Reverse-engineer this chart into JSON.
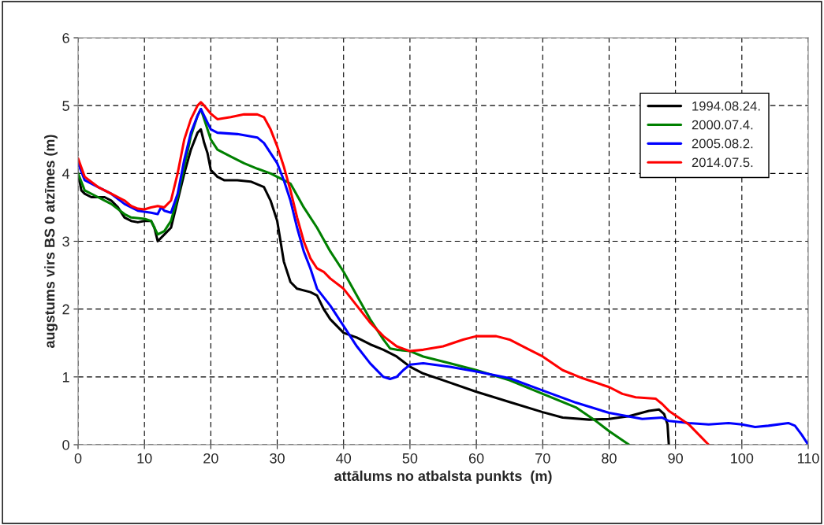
{
  "chart_data": {
    "type": "line",
    "xlabel": "attālums no atbalsta punkts  (m)",
    "ylabel": "augstums virs BS 0 atzīmes (m)",
    "xlim": [
      0,
      110
    ],
    "xticks": [
      0,
      10,
      20,
      30,
      40,
      50,
      60,
      70,
      80,
      90,
      100,
      110
    ],
    "ylim": [
      0,
      6
    ],
    "yticks": [
      0,
      1,
      2,
      3,
      4,
      5,
      6
    ],
    "grid": true,
    "legend": "top right",
    "marker": "none",
    "line_style": "solid",
    "series": [
      {
        "name": "1994.08.24.",
        "color": "#000000",
        "x": [
          0,
          0.5,
          1,
          2,
          4,
          5,
          6,
          7,
          8,
          9,
          10,
          11,
          11.5,
          12,
          13,
          14,
          15,
          16,
          17,
          18,
          18.5,
          19,
          19.5,
          20,
          21,
          22,
          24,
          26,
          28,
          29,
          30,
          31,
          32,
          33,
          35,
          36,
          37,
          38,
          40,
          42,
          44,
          46,
          48,
          50,
          52,
          55,
          60,
          65,
          70,
          73,
          77,
          80,
          83,
          86,
          87.5,
          88.3,
          88.8,
          89
        ],
        "values": [
          4.0,
          3.75,
          3.7,
          3.65,
          3.65,
          3.6,
          3.5,
          3.35,
          3.3,
          3.28,
          3.3,
          3.3,
          3.2,
          3.0,
          3.1,
          3.2,
          3.6,
          4.0,
          4.35,
          4.6,
          4.65,
          4.45,
          4.3,
          4.05,
          3.95,
          3.9,
          3.9,
          3.88,
          3.8,
          3.6,
          3.3,
          2.7,
          2.4,
          2.3,
          2.25,
          2.2,
          2.0,
          1.85,
          1.65,
          1.58,
          1.48,
          1.4,
          1.3,
          1.15,
          1.05,
          0.95,
          0.78,
          0.63,
          0.48,
          0.4,
          0.37,
          0.38,
          0.42,
          0.5,
          0.52,
          0.45,
          0.3,
          0.0
        ]
      },
      {
        "name": "2000.07.4.",
        "color": "#008000",
        "x": [
          0,
          1,
          3,
          5,
          7,
          8,
          10,
          11,
          11.5,
          12,
          13,
          14,
          15,
          16,
          17,
          18,
          18.5,
          19,
          20,
          21,
          23,
          25,
          27,
          29,
          30,
          31,
          32,
          34,
          36,
          38,
          40,
          42,
          44,
          46,
          47,
          48,
          50,
          52,
          56,
          60,
          65,
          70,
          75,
          78,
          80,
          83
        ],
        "values": [
          4.0,
          3.75,
          3.65,
          3.55,
          3.4,
          3.35,
          3.33,
          3.3,
          3.2,
          3.1,
          3.15,
          3.3,
          3.65,
          4.1,
          4.55,
          4.85,
          4.95,
          4.8,
          4.5,
          4.35,
          4.25,
          4.15,
          4.07,
          4.0,
          3.95,
          3.9,
          3.85,
          3.5,
          3.2,
          2.85,
          2.55,
          2.2,
          1.85,
          1.55,
          1.42,
          1.4,
          1.38,
          1.3,
          1.2,
          1.1,
          0.95,
          0.75,
          0.55,
          0.35,
          0.2,
          0.0
        ]
      },
      {
        "name": "2005.08.2.",
        "color": "#0000ff",
        "x": [
          0,
          1,
          3,
          5,
          7,
          9,
          11,
          12,
          12.5,
          13,
          14,
          15,
          16,
          17,
          18,
          18.5,
          19,
          20,
          21,
          24,
          27,
          28,
          30,
          31,
          32,
          33,
          34,
          35,
          36,
          38,
          40,
          42,
          44,
          46,
          47,
          48,
          49,
          50,
          52,
          56,
          60,
          65,
          70,
          75,
          80,
          85,
          88,
          89,
          92,
          95,
          98,
          100,
          102,
          104,
          107,
          108,
          109,
          110
        ],
        "values": [
          4.15,
          3.9,
          3.8,
          3.7,
          3.55,
          3.45,
          3.42,
          3.4,
          3.5,
          3.45,
          3.42,
          3.7,
          4.2,
          4.6,
          4.85,
          4.95,
          4.85,
          4.65,
          4.6,
          4.58,
          4.53,
          4.45,
          4.15,
          3.9,
          3.6,
          3.2,
          2.85,
          2.6,
          2.3,
          2.05,
          1.75,
          1.45,
          1.2,
          1.0,
          0.97,
          1.0,
          1.1,
          1.18,
          1.2,
          1.15,
          1.08,
          0.98,
          0.8,
          0.62,
          0.47,
          0.38,
          0.4,
          0.35,
          0.32,
          0.3,
          0.32,
          0.3,
          0.26,
          0.28,
          0.32,
          0.28,
          0.15,
          0.0
        ]
      },
      {
        "name": "2014.07.5.",
        "color": "#ff0000",
        "x": [
          0,
          1,
          3,
          5,
          7,
          8,
          9,
          10,
          11,
          12,
          13,
          14,
          15,
          16,
          17,
          18,
          18.5,
          19,
          20,
          21,
          23,
          25,
          27,
          28,
          29,
          30,
          31,
          32,
          33,
          34,
          35,
          36,
          37,
          38,
          40,
          42,
          44,
          46,
          48,
          50,
          52,
          55,
          58,
          60,
          63,
          65,
          68,
          70,
          73,
          76,
          80,
          82,
          84,
          87,
          88,
          89,
          92,
          95
        ],
        "values": [
          4.22,
          3.95,
          3.8,
          3.7,
          3.6,
          3.52,
          3.48,
          3.47,
          3.5,
          3.52,
          3.5,
          3.6,
          4.0,
          4.5,
          4.8,
          5.0,
          5.05,
          5.0,
          4.88,
          4.8,
          4.83,
          4.87,
          4.87,
          4.83,
          4.65,
          4.4,
          4.1,
          3.75,
          3.35,
          3.0,
          2.75,
          2.6,
          2.55,
          2.45,
          2.3,
          2.05,
          1.8,
          1.6,
          1.45,
          1.38,
          1.4,
          1.45,
          1.55,
          1.6,
          1.6,
          1.55,
          1.4,
          1.3,
          1.1,
          0.98,
          0.85,
          0.75,
          0.7,
          0.68,
          0.6,
          0.5,
          0.3,
          0.0
        ]
      }
    ]
  }
}
